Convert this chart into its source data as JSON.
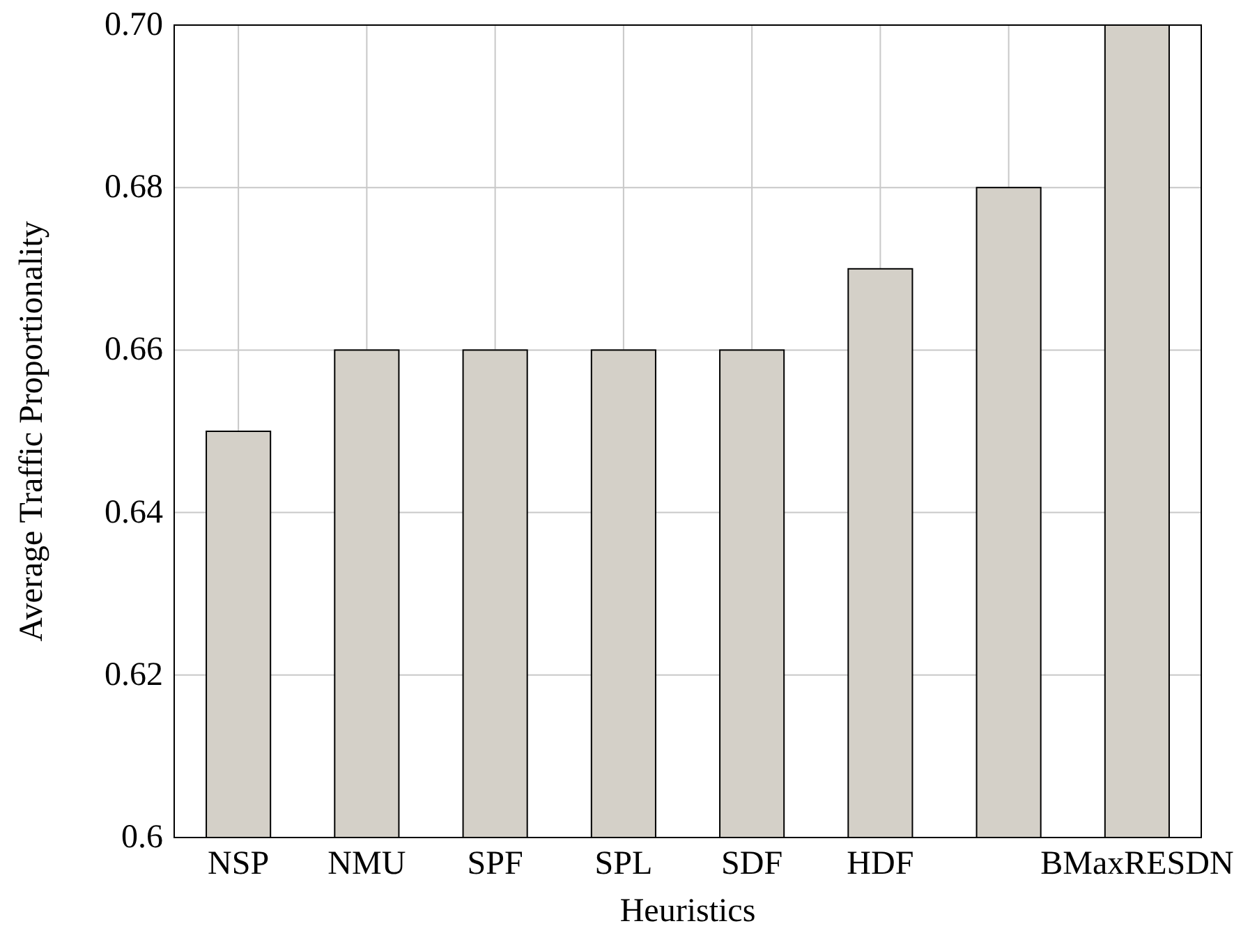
{
  "chart_data": {
    "type": "bar",
    "xlabel": "Heuristics",
    "ylabel": "Average Traffic Proportionality",
    "categories": [
      "NSP",
      "NMU",
      "SPF",
      "SPL",
      "SDF",
      "HDF",
      null,
      "BMaxRESDN"
    ],
    "values": [
      0.65,
      0.66,
      0.66,
      0.66,
      0.66,
      0.67,
      0.68,
      0.7
    ],
    "color": "#d4d0c8",
    "ylim": [
      0.6,
      0.7
    ],
    "yticks": [
      {
        "value": 0.6,
        "label": "0.6"
      },
      0.62,
      0.64,
      0.66,
      0.68,
      {
        "value": 0.7,
        "label": "0.70"
      }
    ],
    "grid": true
  }
}
